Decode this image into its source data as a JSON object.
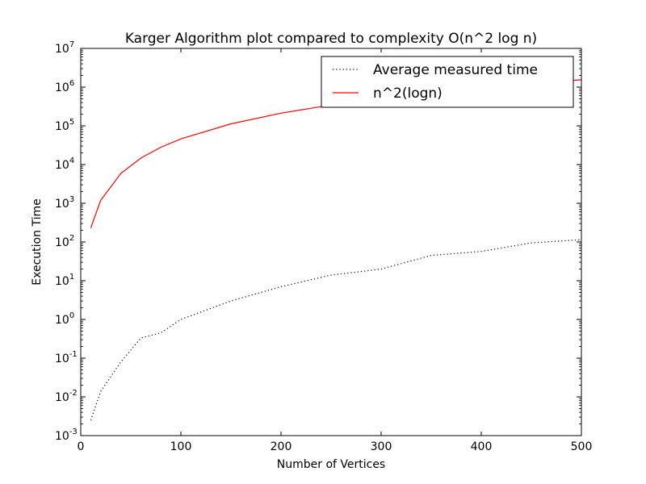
{
  "chart_data": {
    "type": "line",
    "title": "Karger Algorithm plot compared to complexity O(n^2 log n)",
    "xlabel": "Number of Vertices",
    "ylabel": "Execution Time",
    "xlim": [
      0,
      500
    ],
    "ylim": [
      0.001,
      10000000
    ],
    "yscale": "log",
    "grid": false,
    "legend_position": "top-right",
    "x_ticks": [
      "0",
      "100",
      "200",
      "300",
      "400",
      "500"
    ],
    "y_ticks": [
      {
        "base": "10",
        "exp": "-3"
      },
      {
        "base": "10",
        "exp": "-2"
      },
      {
        "base": "10",
        "exp": "-1"
      },
      {
        "base": "10",
        "exp": "0"
      },
      {
        "base": "10",
        "exp": "1"
      },
      {
        "base": "10",
        "exp": "2"
      },
      {
        "base": "10",
        "exp": "3"
      },
      {
        "base": "10",
        "exp": "4"
      },
      {
        "base": "10",
        "exp": "5"
      },
      {
        "base": "10",
        "exp": "6"
      },
      {
        "base": "10",
        "exp": "7"
      }
    ],
    "series": [
      {
        "name": "Average measured time",
        "color": "#000000",
        "style": "dotted",
        "x": [
          10,
          20,
          40,
          60,
          80,
          100,
          150,
          200,
          250,
          300,
          350,
          400,
          450,
          500
        ],
        "y": [
          0.0025,
          0.014,
          0.08,
          0.33,
          0.45,
          1.0,
          3.0,
          7.0,
          14.0,
          20.0,
          45.0,
          57.0,
          95.0,
          115.0
        ]
      },
      {
        "name": "n^2(logn)",
        "color": "#ff0000",
        "style": "solid",
        "x": [
          10,
          20,
          40,
          60,
          80,
          100,
          150,
          200,
          250,
          300,
          350,
          400,
          450,
          500
        ],
        "y": [
          230,
          1200,
          5900,
          14700,
          28000,
          46000,
          113000,
          212000,
          345000,
          513000,
          718000,
          959000,
          1240000,
          1550000
        ]
      }
    ]
  }
}
